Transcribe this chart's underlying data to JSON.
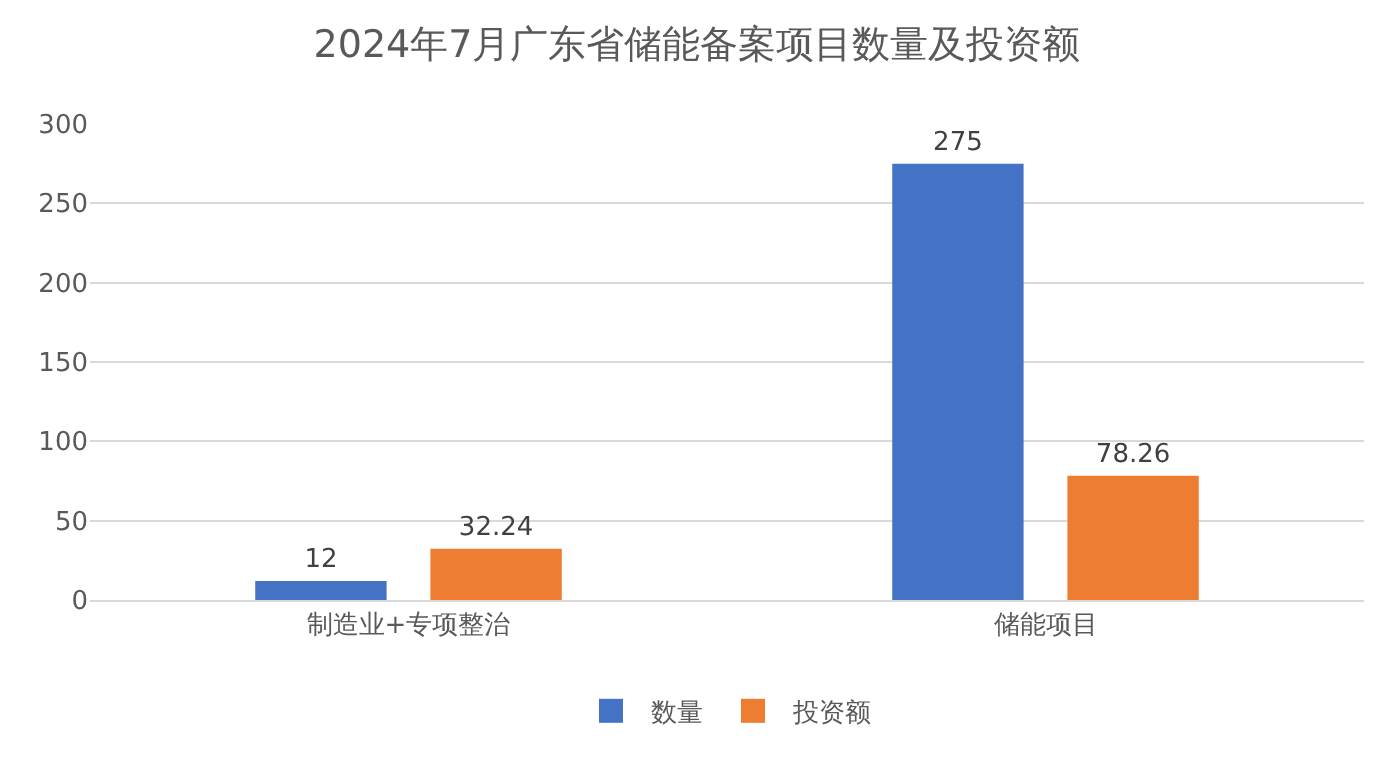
{
  "chart_data": {
    "type": "bar",
    "title": "2024年7月广东省储能备案项目数量及投资额",
    "categories": [
      "制造业+专项整治",
      "储能项目"
    ],
    "series": [
      {
        "name": "数量",
        "color": "#4472c4",
        "values": [
          12,
          275
        ]
      },
      {
        "name": "投资额",
        "color": "#ed7d31",
        "values": [
          32.24,
          78.26
        ]
      }
    ],
    "ylim": [
      0,
      300
    ],
    "yticks": [
      0,
      50,
      100,
      150,
      200,
      250,
      300
    ],
    "grid": "y",
    "legend": "bottom",
    "data_labels": true
  }
}
